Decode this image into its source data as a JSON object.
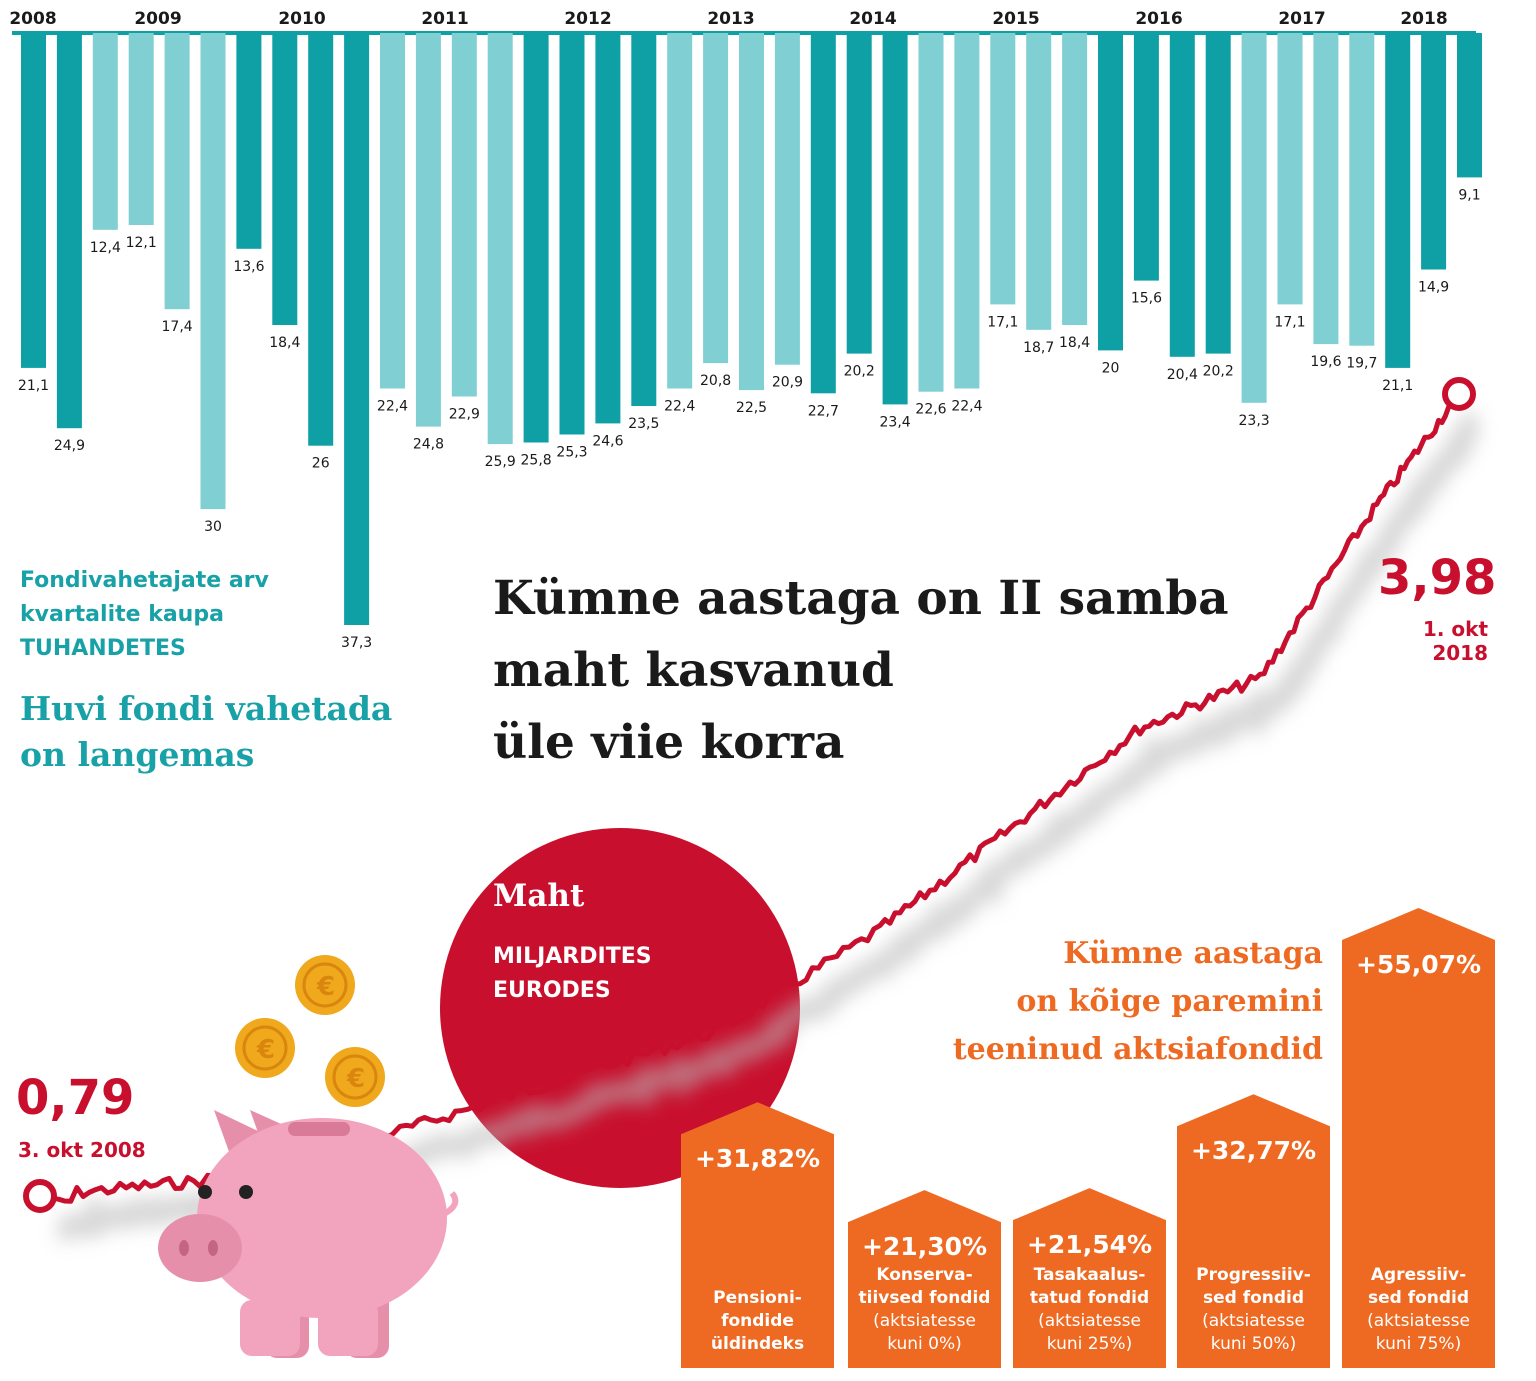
{
  "title": {
    "lines": [
      "Kümne aastaga on II samba",
      "maht kasvanud",
      "üle viie korra"
    ]
  },
  "chart_data": [
    {
      "type": "bar",
      "title": "Huvi fondi vahetada on langemas",
      "legend_label": "Fondivahetajate arv kvartalite kaupa",
      "unit": "TUHANDETES",
      "years": [
        "2008",
        "2009",
        "2010",
        "2011",
        "2012",
        "2013",
        "2014",
        "2015",
        "2016",
        "2017",
        "2018"
      ],
      "values": [
        21.1,
        24.9,
        12.4,
        12.1,
        17.4,
        30,
        13.6,
        18.4,
        26,
        37.3,
        22.4,
        24.8,
        22.9,
        25.9,
        25.8,
        25.3,
        24.6,
        23.5,
        22.4,
        20.8,
        22.5,
        20.9,
        22.7,
        20.2,
        23.4,
        22.6,
        22.4,
        17.1,
        18.7,
        18.4,
        20,
        15.6,
        20.4,
        20.2,
        23.3,
        17.1,
        19.6,
        19.7,
        21.1,
        14.9,
        9.1
      ],
      "labels": [
        "21,1",
        "24,9",
        "12,4",
        "12,1",
        "17,4",
        "30",
        "13,6",
        "18,4",
        "26",
        "37,3",
        "22,4",
        "24,8",
        "22,9",
        "25,9",
        "25,8",
        "25,3",
        "24,6",
        "23,5",
        "22,4",
        "20,8",
        "22,5",
        "20,9",
        "22,7",
        "20,2",
        "23,4",
        "22,6",
        "22,4",
        "17,1",
        "18,7",
        "18,4",
        "20",
        "15,6",
        "20,4",
        "20,2",
        "23,3",
        "17,1",
        "19,6",
        "19,7",
        "21,1",
        "14,9",
        "9,1"
      ],
      "colors": [
        "#0fa0a6",
        "#7fcfd3"
      ],
      "bar_color_pattern": [
        0,
        0,
        1,
        1,
        1,
        1,
        0,
        0,
        0,
        0,
        1,
        1,
        1,
        1,
        0,
        0,
        0,
        0,
        1,
        1,
        1,
        1,
        0,
        0,
        0,
        1,
        1,
        1,
        1,
        1,
        0,
        0,
        0,
        0,
        1,
        1,
        1,
        1,
        0,
        0,
        0
      ],
      "ylim": [
        0,
        40
      ]
    },
    {
      "type": "line",
      "title": "Maht",
      "unit": "MILJARDITES EURODES",
      "x": [
        "3. okt 2008",
        "2009",
        "2010",
        "2011",
        "2012",
        "2013",
        "2014",
        "2015",
        "2016",
        "2017",
        "1. okt 2018"
      ],
      "values": [
        0.79,
        0.85,
        1.05,
        1.25,
        1.45,
        1.85,
        2.25,
        2.65,
        2.85,
        3.5,
        3.98
      ],
      "start_label": "0,79",
      "end_label": "3,98",
      "color": "#c8102e"
    },
    {
      "type": "bar",
      "title": "Kümne aastaga on kõige paremini teeninud aktsiafondid",
      "categories": [
        "Pensioni-fondide üldindeks",
        "Konservatiivsed fondid",
        "Tasakaalustatud fondid",
        "Progressiivsed fondid",
        "Agressiivsed fondid"
      ],
      "values": [
        31.82,
        21.3,
        21.54,
        32.77,
        55.07
      ],
      "color": "#ee6a22"
    }
  ],
  "left_head": {
    "lines": [
      "Huvi fondi vahetada",
      "on langemas"
    ]
  },
  "legend": {
    "lines": [
      "Fondivahetajate arv",
      "kvartalite kaupa"
    ],
    "unit": "TUHANDETES"
  },
  "volume": {
    "title": "Maht",
    "unit_lines": [
      "MILJARDITES",
      "EURODES"
    ]
  },
  "line_labels": {
    "start_value": "0,79",
    "start_date": "3. okt 2008",
    "end_value": "3,98",
    "end_date": "1. okt 2018"
  },
  "funds": {
    "heading_lines": [
      "Kümne aastaga",
      "on kõige paremini",
      "teeninud aktsiafondid"
    ],
    "items": [
      {
        "value": "+31,82%",
        "label_lines": [
          "Pensioni-",
          "fondide",
          "üldindeks"
        ],
        "sub_lines": []
      },
      {
        "value": "+21,30%",
        "label_lines": [
          "Konserva-",
          "tiivsed fondid"
        ],
        "sub_lines": [
          "(aktsiatesse",
          "kuni 0%)"
        ]
      },
      {
        "value": "+21,54%",
        "label_lines": [
          "Tasakaalus-",
          "tatud fondid"
        ],
        "sub_lines": [
          "(aktsiatesse",
          "kuni 25%)"
        ]
      },
      {
        "value": "+32,77%",
        "label_lines": [
          "Progressiiv-",
          "sed fondid"
        ],
        "sub_lines": [
          "(aktsiatesse",
          "kuni 50%)"
        ]
      },
      {
        "value": "+55,07%",
        "label_lines": [
          "Agressiiv-",
          "sed fondid"
        ],
        "sub_lines": [
          "(aktsiatesse",
          "kuni 75%)"
        ]
      }
    ]
  },
  "decor": {
    "pig_color": "#f2a3bd",
    "coin_color": "#f0a81c"
  }
}
